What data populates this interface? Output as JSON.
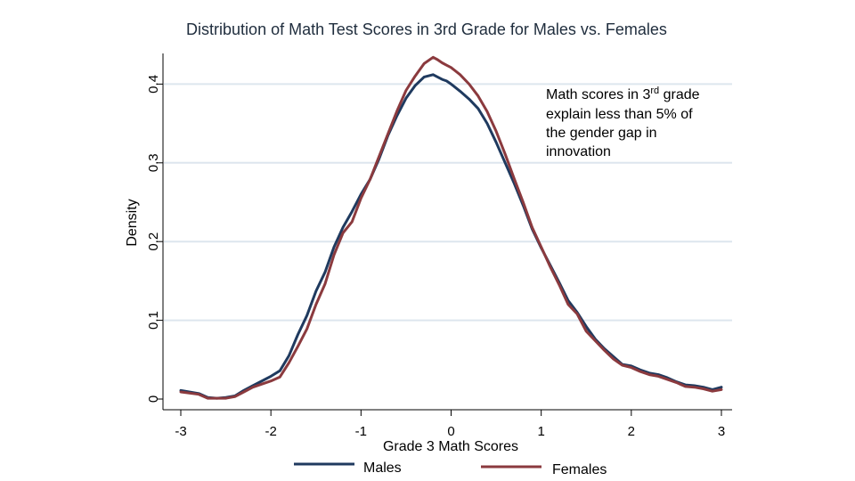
{
  "chart_data": {
    "type": "line",
    "title": "Distribution of Math Test Scores in 3rd Grade for Males vs. Females",
    "xlabel": "Grade 3 Math Scores",
    "ylabel": "Density",
    "xlim": [
      -3,
      3
    ],
    "ylim": [
      0,
      0.45
    ],
    "x_ticks": [
      "-3",
      "-2",
      "-1",
      "0",
      "1",
      "2",
      "3"
    ],
    "y_ticks": [
      "0",
      "0.1",
      "0.2",
      "0.3",
      "0.4"
    ],
    "grid": true,
    "legend": "bottom",
    "annotation": {
      "pre": "Math scores in 3",
      "sup": "rd",
      "post": " grade",
      "lines": [
        "explain less than 5% of",
        "the gender gap in",
        "innovation"
      ]
    },
    "series": [
      {
        "name": "Males",
        "color": "#1f3a5f",
        "x": [
          -3.0,
          -2.8,
          -2.7,
          -2.6,
          -2.5,
          -2.4,
          -2.3,
          -2.2,
          -2.0,
          -1.9,
          -1.8,
          -1.7,
          -1.6,
          -1.5,
          -1.4,
          -1.3,
          -1.2,
          -1.1,
          -1.0,
          -0.9,
          -0.8,
          -0.7,
          -0.6,
          -0.5,
          -0.4,
          -0.3,
          -0.2,
          -0.15,
          -0.1,
          -0.05,
          0.0,
          0.1,
          0.2,
          0.3,
          0.4,
          0.5,
          0.6,
          0.7,
          0.8,
          0.9,
          1.0,
          1.1,
          1.2,
          1.3,
          1.4,
          1.5,
          1.6,
          1.7,
          1.8,
          1.9,
          2.0,
          2.1,
          2.2,
          2.3,
          2.4,
          2.5,
          2.6,
          2.7,
          2.8,
          2.9,
          3.0
        ],
        "values": [
          0.011,
          0.007,
          0.002,
          0.001,
          0.002,
          0.004,
          0.011,
          0.017,
          0.029,
          0.036,
          0.055,
          0.082,
          0.106,
          0.137,
          0.161,
          0.193,
          0.218,
          0.238,
          0.26,
          0.279,
          0.305,
          0.335,
          0.36,
          0.382,
          0.398,
          0.409,
          0.412,
          0.409,
          0.406,
          0.404,
          0.4,
          0.391,
          0.381,
          0.369,
          0.35,
          0.326,
          0.3,
          0.274,
          0.246,
          0.216,
          0.192,
          0.17,
          0.148,
          0.125,
          0.11,
          0.092,
          0.076,
          0.064,
          0.054,
          0.044,
          0.042,
          0.037,
          0.033,
          0.031,
          0.027,
          0.022,
          0.018,
          0.017,
          0.015,
          0.012,
          0.015
        ]
      },
      {
        "name": "Females",
        "color": "#8b3a3e",
        "x": [
          -3.0,
          -2.8,
          -2.7,
          -2.6,
          -2.5,
          -2.4,
          -2.3,
          -2.2,
          -2.0,
          -1.9,
          -1.8,
          -1.7,
          -1.6,
          -1.5,
          -1.4,
          -1.3,
          -1.2,
          -1.1,
          -1.0,
          -0.9,
          -0.8,
          -0.7,
          -0.6,
          -0.5,
          -0.4,
          -0.3,
          -0.2,
          -0.15,
          -0.1,
          -0.05,
          0.0,
          0.1,
          0.2,
          0.3,
          0.4,
          0.5,
          0.6,
          0.7,
          0.8,
          0.9,
          1.0,
          1.1,
          1.2,
          1.3,
          1.4,
          1.5,
          1.6,
          1.7,
          1.8,
          1.9,
          2.0,
          2.1,
          2.2,
          2.3,
          2.4,
          2.5,
          2.6,
          2.7,
          2.8,
          2.9,
          3.0
        ],
        "values": [
          0.009,
          0.006,
          0.001,
          0.001,
          0.001,
          0.003,
          0.009,
          0.015,
          0.023,
          0.028,
          0.046,
          0.067,
          0.089,
          0.12,
          0.146,
          0.183,
          0.211,
          0.225,
          0.255,
          0.279,
          0.308,
          0.337,
          0.366,
          0.392,
          0.41,
          0.426,
          0.434,
          0.431,
          0.427,
          0.424,
          0.421,
          0.412,
          0.4,
          0.385,
          0.365,
          0.34,
          0.311,
          0.28,
          0.25,
          0.218,
          0.193,
          0.168,
          0.145,
          0.12,
          0.108,
          0.086,
          0.074,
          0.062,
          0.051,
          0.043,
          0.04,
          0.035,
          0.031,
          0.029,
          0.025,
          0.021,
          0.016,
          0.015,
          0.013,
          0.01,
          0.012
        ]
      }
    ]
  }
}
